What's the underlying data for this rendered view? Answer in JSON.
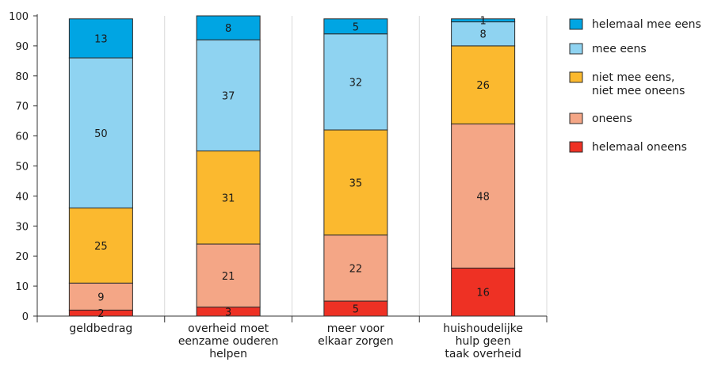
{
  "chart_data": {
    "type": "bar",
    "stacked": true,
    "categories": [
      [
        "geldbedrag"
      ],
      [
        "overheid moet",
        "eenzame ouderen",
        "helpen"
      ],
      [
        "meer voor",
        "elkaar zorgen"
      ],
      [
        "huishoudelijke",
        "hulp geen",
        "taak overheid"
      ]
    ],
    "ylim": [
      0,
      100
    ],
    "yticks": [
      0,
      10,
      20,
      30,
      40,
      50,
      60,
      70,
      80,
      90,
      100
    ],
    "grid": "vertical",
    "legend_position": "right",
    "series": [
      {
        "name": "helemaal oneens",
        "color": "#ee3124",
        "values": [
          2,
          3,
          5,
          16
        ]
      },
      {
        "name": "oneens",
        "color": "#f4a686",
        "values": [
          9,
          21,
          22,
          48
        ]
      },
      {
        "name": "niet mee eens,\nniet mee oneens",
        "color": "#fbb92f",
        "values": [
          25,
          31,
          35,
          26
        ]
      },
      {
        "name": "mee eens",
        "color": "#8fd3f1",
        "values": [
          50,
          37,
          32,
          8
        ]
      },
      {
        "name": "helemaal mee eens",
        "color": "#00a5e3",
        "values": [
          13,
          8,
          5,
          1
        ]
      }
    ]
  }
}
